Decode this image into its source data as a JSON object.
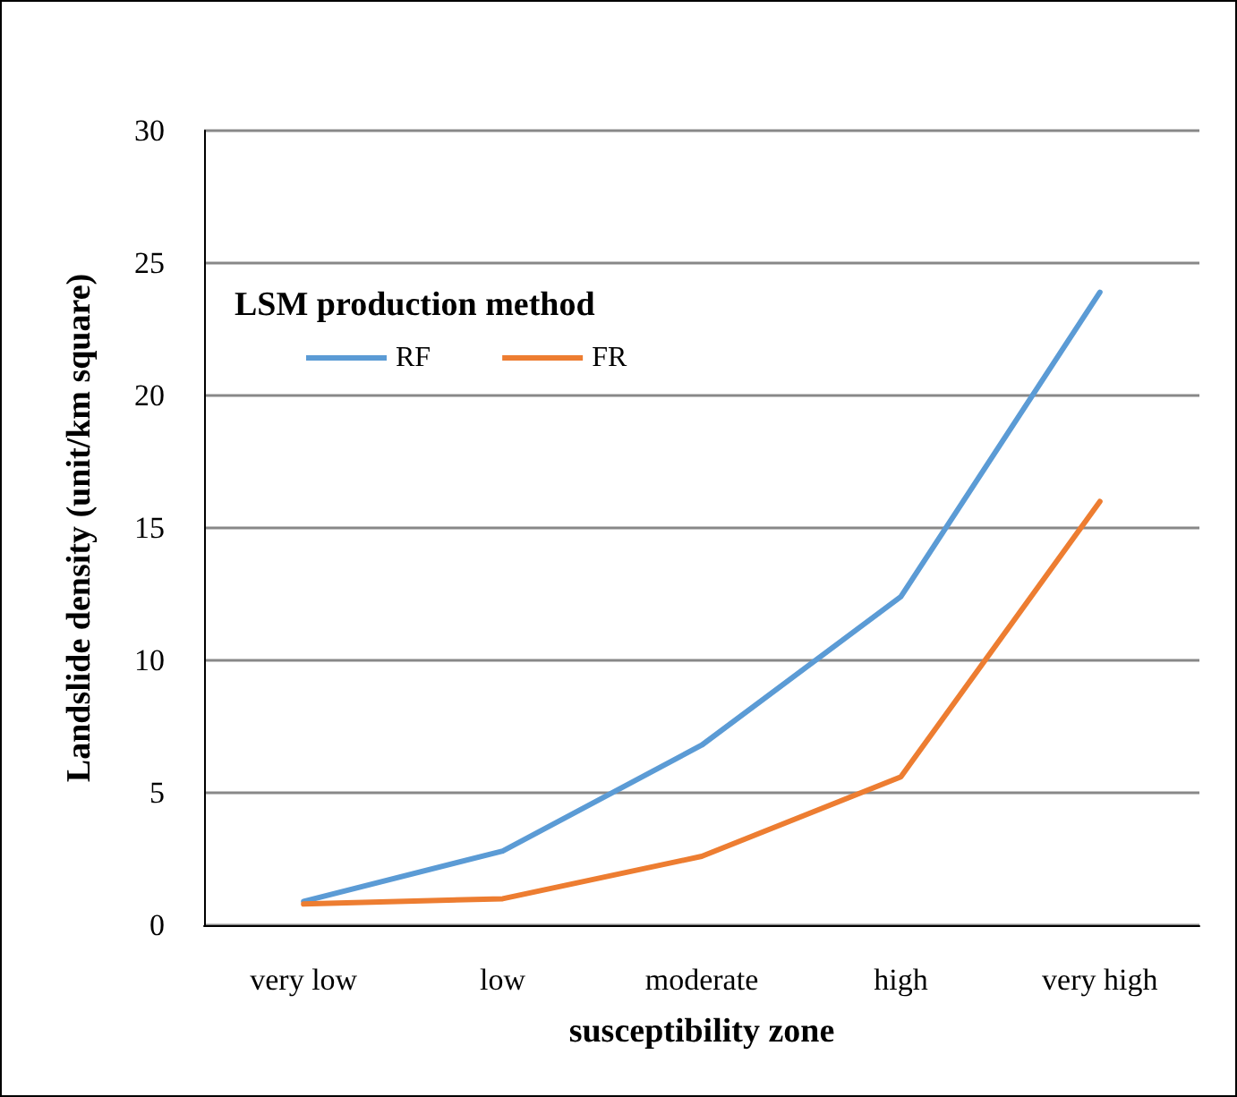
{
  "chart_data": {
    "type": "line",
    "xlabel": "susceptibility zone",
    "ylabel": "Landslide density (unit/km square)",
    "legend_title": "LSM production method",
    "categories": [
      "very low",
      "low",
      "moderate",
      "high",
      "very high"
    ],
    "series": [
      {
        "name": "RF",
        "color": "#5b9bd5",
        "values": [
          0.9,
          2.8,
          6.8,
          12.4,
          23.9
        ]
      },
      {
        "name": "FR",
        "color": "#ed7d31",
        "values": [
          0.8,
          1.0,
          2.6,
          5.6,
          16.0
        ]
      }
    ],
    "ylim": [
      0,
      30
    ],
    "yticks": [
      0,
      5,
      10,
      15,
      20,
      25,
      30
    ],
    "grid": "y",
    "legend": "top left",
    "marker": "none",
    "line_style": "solid"
  }
}
